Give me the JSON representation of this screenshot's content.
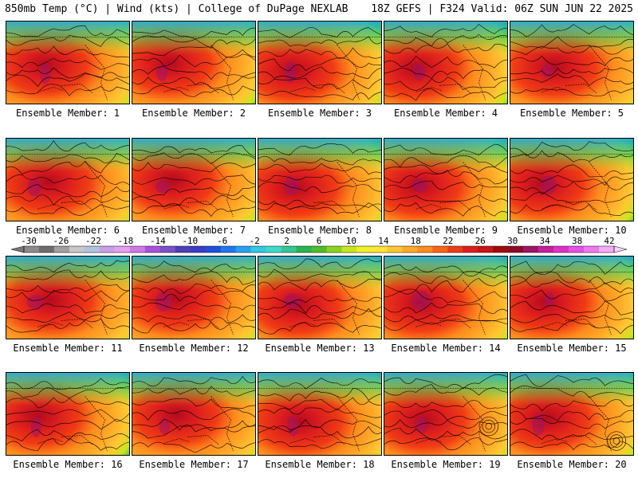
{
  "header": {
    "left": "850mb Temp (°C) | Wind (kts) | College of DuPage NEXLAB",
    "right": "18Z GEFS | F324 Valid: 06Z SUN JUN 22 2025"
  },
  "panels": [
    {
      "label": "Ensemble Member: 1"
    },
    {
      "label": "Ensemble Member: 2"
    },
    {
      "label": "Ensemble Member: 3"
    },
    {
      "label": "Ensemble Member: 4"
    },
    {
      "label": "Ensemble Member: 5"
    },
    {
      "label": "Ensemble Member: 6"
    },
    {
      "label": "Ensemble Member: 7"
    },
    {
      "label": "Ensemble Member: 8"
    },
    {
      "label": "Ensemble Member: 9"
    },
    {
      "label": "Ensemble Member: 10"
    },
    {
      "label": "Ensemble Member: 11"
    },
    {
      "label": "Ensemble Member: 12"
    },
    {
      "label": "Ensemble Member: 13"
    },
    {
      "label": "Ensemble Member: 14"
    },
    {
      "label": "Ensemble Member: 15"
    },
    {
      "label": "Ensemble Member: 16"
    },
    {
      "label": "Ensemble Member: 17"
    },
    {
      "label": "Ensemble Member: 18"
    },
    {
      "label": "Ensemble Member: 19"
    },
    {
      "label": "Ensemble Member: 20"
    }
  ],
  "colorbar": {
    "ticks": [
      "-30",
      "-26",
      "-22",
      "-18",
      "-14",
      "-10",
      "-6",
      "-2",
      "2",
      "6",
      "10",
      "14",
      "18",
      "22",
      "26",
      "30",
      "34",
      "38",
      "42"
    ],
    "colors": [
      "#8c8c8c",
      "#6e6e6e",
      "#a0a0a0",
      "#c8c8c8",
      "#b0c4de",
      "#c8a0e6",
      "#e6a0f0",
      "#d278e6",
      "#aa50dc",
      "#7850c8",
      "#5040b4",
      "#3c3cc8",
      "#1e50dc",
      "#1e78f0",
      "#28a0f0",
      "#32c8e6",
      "#3cdcc8",
      "#32c896",
      "#28b450",
      "#50be28",
      "#8cd21e",
      "#c8e61e",
      "#f0f028",
      "#ffe632",
      "#ffc832",
      "#ffaa28",
      "#ff8c1e",
      "#ff6414",
      "#f03c14",
      "#dc1e1e",
      "#c81414",
      "#a00a0a",
      "#8c0a28",
      "#a01464",
      "#c81ea0",
      "#dc32c8",
      "#e650e6",
      "#f078f0",
      "#f8aaf8"
    ]
  }
}
